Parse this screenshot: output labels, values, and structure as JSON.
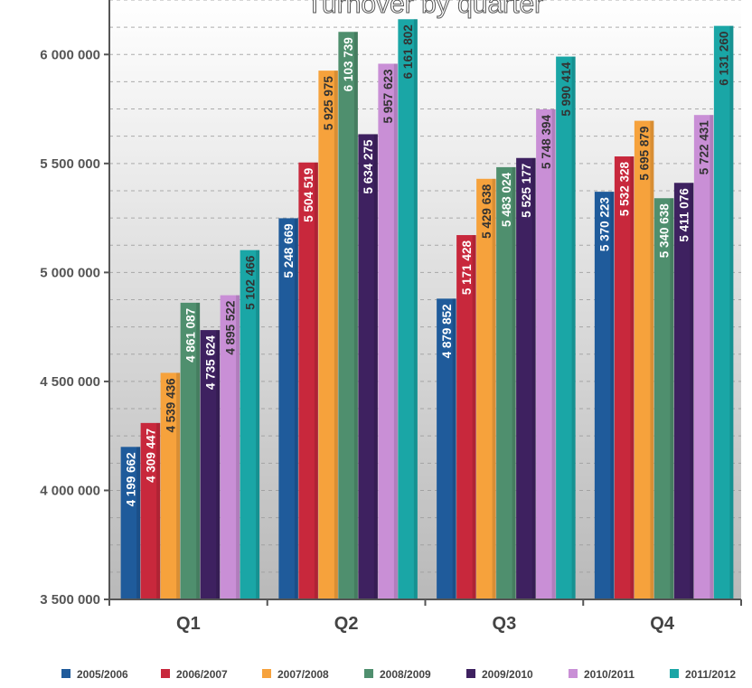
{
  "chart_data": {
    "type": "bar",
    "title": "Turnover by quarter",
    "categories": [
      "Q1",
      "Q2",
      "Q3",
      "Q4"
    ],
    "ylim": [
      3500000,
      6250000
    ],
    "yticks": [
      "3 500 000",
      "4 000 000",
      "4 500 000",
      "5 000 000",
      "5 500 000",
      "6 000 000"
    ],
    "ytick_values": [
      3500000,
      4000000,
      4500000,
      5000000,
      5500000,
      6000000
    ],
    "grid": true,
    "legend_position": "bottom",
    "series": [
      {
        "name": "2005/2006",
        "color": "#1f5b9b",
        "values": [
          4199662,
          5248669,
          4879852,
          5370223
        ],
        "labels": [
          "4 199 662",
          "5 248 669",
          "4 879 852",
          "5 370 223"
        ]
      },
      {
        "name": "2006/2007",
        "color": "#c8283c",
        "values": [
          4309447,
          5504519,
          5171428,
          5532328
        ],
        "labels": [
          "4 309 447",
          "5 504 519",
          "5 171 428",
          "5 532 328"
        ]
      },
      {
        "name": "2007/2008",
        "color": "#f6a23c",
        "values": [
          4539436,
          5925975,
          5429638,
          5695879
        ],
        "labels": [
          "4 539 436",
          "5 925 975",
          "5 429 638",
          "5 695 879"
        ]
      },
      {
        "name": "2008/2009",
        "color": "#4f8f6e",
        "values": [
          4861087,
          6103739,
          5483024,
          5340638
        ],
        "labels": [
          "4 861 087",
          "6 103 739",
          "5 483 024",
          "5 340 638"
        ]
      },
      {
        "name": "2009/2010",
        "color": "#3e2160",
        "values": [
          4735624,
          5634275,
          5525177,
          5411076
        ],
        "labels": [
          "4 735 624",
          "5 634 275",
          "5 525 177",
          "5 411 076"
        ]
      },
      {
        "name": "2010/2011",
        "color": "#c98fd6",
        "values": [
          4895522,
          5957623,
          5748394,
          5722431
        ],
        "labels": [
          "4 895 522",
          "5 957 623",
          "5 748 394",
          "5 722 431"
        ]
      },
      {
        "name": "2011/2012",
        "color": "#1aa6a6",
        "values": [
          5102466,
          6161802,
          5990414,
          6131260
        ],
        "labels": [
          "5 102 466",
          "6 161 802",
          "5 990 414",
          "6 131 260"
        ]
      }
    ],
    "label_colors": [
      "#ffffff",
      "#ffffff",
      "#333333",
      "#ffffff",
      "#ffffff",
      "#333333",
      "#333333"
    ]
  }
}
